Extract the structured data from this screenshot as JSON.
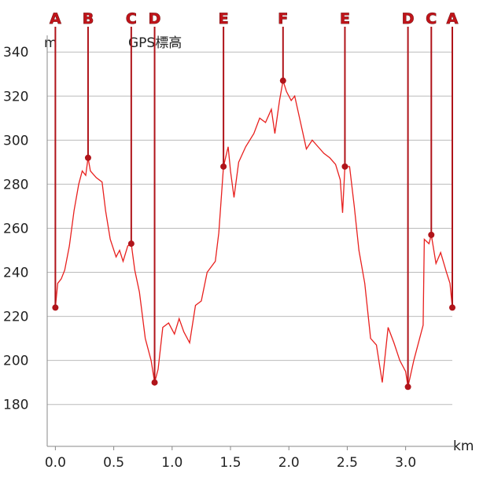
{
  "chart_data": {
    "type": "line",
    "y_label": "m",
    "x_label": "km",
    "grid": true,
    "xlim": [
      -0.07,
      3.4
    ],
    "ylim": [
      161,
      344
    ],
    "xticks": [
      {
        "value": 0,
        "label": "0.0"
      },
      0.5,
      {
        "value": 1,
        "label": "1.0"
      },
      1.5,
      {
        "value": 2,
        "label": "2.0"
      },
      2.5,
      {
        "value": 3,
        "label": "3.0"
      }
    ],
    "yticks": [
      180,
      200,
      220,
      240,
      260,
      280,
      300,
      320,
      340
    ],
    "series": [
      {
        "name": "GPS標高",
        "color": "#e8201e",
        "x": [
          0,
          0.02,
          0.05,
          0.08,
          0.12,
          0.16,
          0.2,
          0.23,
          0.26,
          0.28,
          0.3,
          0.35,
          0.4,
          0.43,
          0.47,
          0.52,
          0.55,
          0.58,
          0.62,
          0.65,
          0.68,
          0.72,
          0.77,
          0.82,
          0.85,
          0.88,
          0.92,
          0.97,
          1.02,
          1.06,
          1.1,
          1.15,
          1.2,
          1.25,
          1.3,
          1.37,
          1.4,
          1.44,
          1.48,
          1.5,
          1.53,
          1.57,
          1.63,
          1.7,
          1.75,
          1.8,
          1.85,
          1.88,
          1.92,
          1.95,
          1.98,
          2.02,
          2.05,
          2.1,
          2.15,
          2.2,
          2.25,
          2.3,
          2.35,
          2.4,
          2.44,
          2.46,
          2.48,
          2.52,
          2.56,
          2.6,
          2.65,
          2.7,
          2.75,
          2.8,
          2.85,
          2.9,
          2.95,
          3.0,
          3.02,
          3.07,
          3.15,
          3.16,
          3.2,
          3.22,
          3.26,
          3.3,
          3.35,
          3.38,
          3.4
        ],
        "values": [
          224,
          235,
          237,
          241,
          252,
          268,
          280,
          286,
          284,
          292,
          286,
          283,
          281,
          268,
          255,
          247,
          250,
          245,
          252,
          253,
          241,
          231,
          210,
          200,
          190,
          196,
          215,
          217,
          212,
          219,
          213,
          208,
          225,
          227,
          240,
          245,
          258,
          288,
          297,
          286,
          274,
          290,
          297,
          303,
          310,
          308,
          314,
          303,
          318,
          327,
          322,
          318,
          320,
          308,
          296,
          300,
          297,
          294,
          292,
          289,
          282,
          267,
          288,
          288,
          270,
          250,
          235,
          210,
          207,
          190,
          215,
          208,
          200,
          195,
          188,
          200,
          216,
          255,
          253,
          257,
          244,
          249,
          240,
          235,
          224
        ]
      }
    ],
    "waypoints": {
      "color": "#b0141a",
      "labels": [
        "A",
        "B",
        "C",
        "D",
        "E",
        "F",
        "E",
        "D",
        "C",
        "A"
      ],
      "x": [
        0,
        0.28,
        0.65,
        0.85,
        1.44,
        1.95,
        2.48,
        3.02,
        3.22,
        3.4
      ],
      "values": [
        224,
        292,
        253,
        190,
        288,
        327,
        288,
        188,
        257,
        224
      ]
    }
  }
}
